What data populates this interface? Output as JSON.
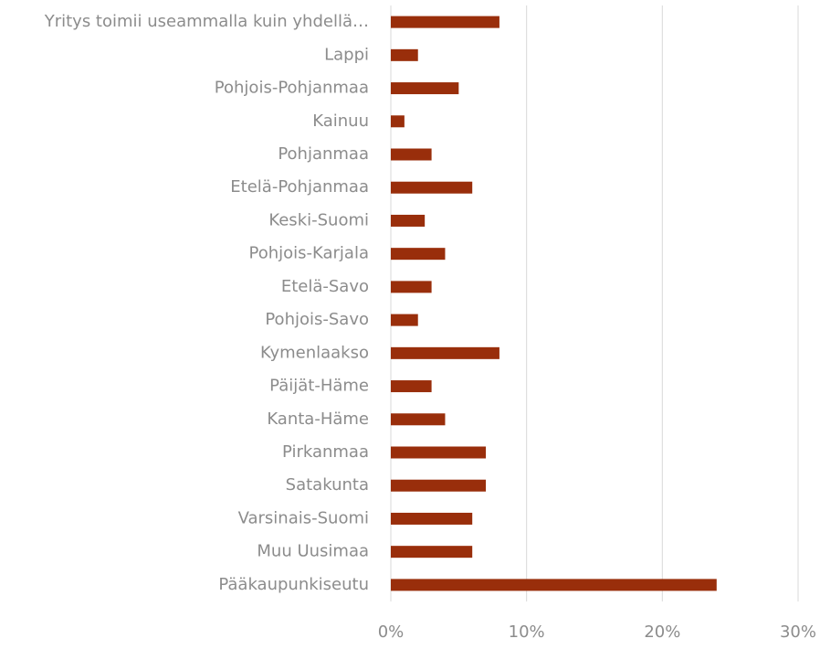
{
  "chart_data": {
    "type": "barh",
    "categories": [
      "Yritys toimii useammalla kuin yhdellä…",
      "Lappi",
      "Pohjois-Pohjanmaa",
      "Kainuu",
      "Pohjanmaa",
      "Etelä-Pohjanmaa",
      "Keski-Suomi",
      "Pohjois-Karjala",
      "Etelä-Savo",
      "Pohjois-Savo",
      "Kymenlaakso",
      "Päijät-Häme",
      "Kanta-Häme",
      "Pirkanmaa",
      "Satakunta",
      "Varsinais-Suomi",
      "Muu Uusimaa",
      "Pääkaupunkiseutu"
    ],
    "values": [
      8,
      2,
      5,
      1,
      3,
      6,
      2.5,
      4,
      3,
      2,
      8,
      3,
      4,
      7,
      7,
      6,
      6,
      24
    ],
    "color": "#992e0b",
    "xlim": [
      0,
      30
    ],
    "xticks": [
      {
        "value": 0,
        "label": "0%"
      },
      {
        "value": 10,
        "label": "10%"
      },
      {
        "value": 20,
        "label": "20%"
      },
      {
        "value": 30,
        "label": "30%"
      }
    ],
    "grid": true
  }
}
